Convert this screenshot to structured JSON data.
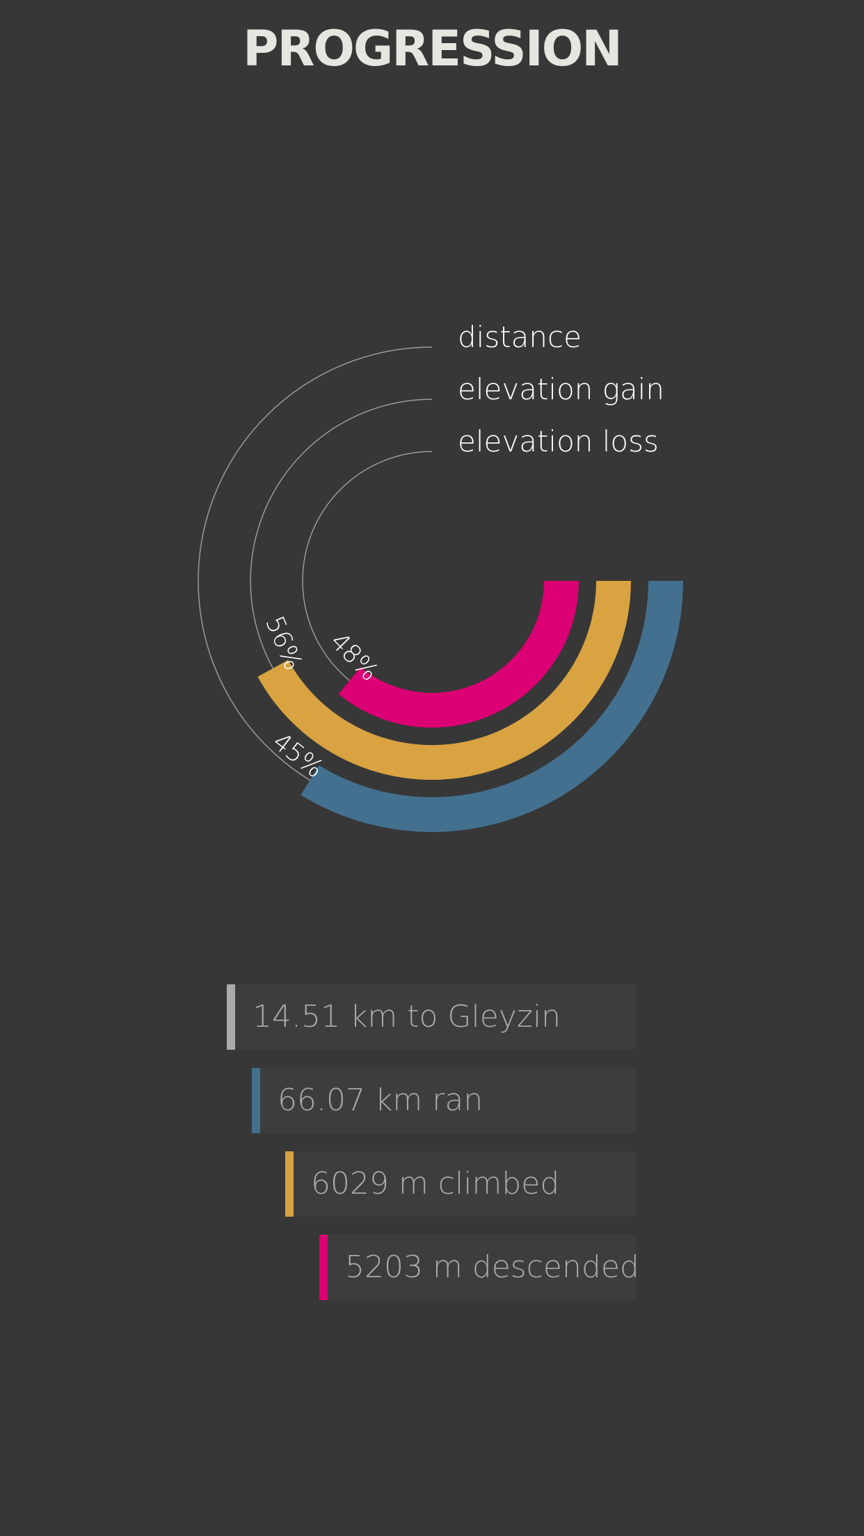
{
  "title": "PROGRESSION",
  "chart_data": {
    "type": "radial-bar",
    "series": [
      {
        "name": "distance",
        "percent": 45,
        "label": "45%",
        "color": "#43708f"
      },
      {
        "name": "elevation gain",
        "percent": 56,
        "label": "56%",
        "color": "#d9a342"
      },
      {
        "name": "elevation loss",
        "percent": 48,
        "label": "48%",
        "color": "#db0073"
      }
    ]
  },
  "stats": [
    {
      "text": "14.51 km to Gleyzin",
      "color": "#aaaaaa"
    },
    {
      "text": "66.07 km ran",
      "color": "#43708f"
    },
    {
      "text": "6029 m climbed",
      "color": "#d9a342"
    },
    {
      "text": "5203 m descended",
      "color": "#db0073"
    }
  ]
}
